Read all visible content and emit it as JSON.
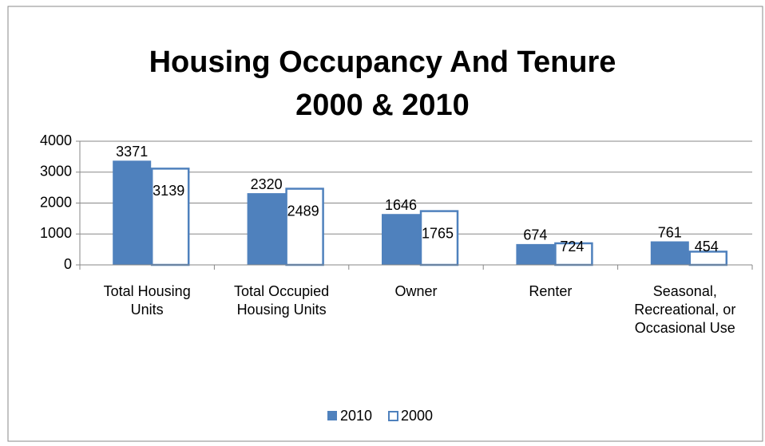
{
  "chart_data": {
    "type": "bar",
    "title": [
      "Housing Occupancy And Tenure",
      "2000 & 2010"
    ],
    "categories": [
      "Total Housing Units",
      "Total Occupied Housing Units",
      "Owner",
      "Renter",
      "Seasonal, Recreational, or Occasional Use"
    ],
    "series": [
      {
        "name": "2010",
        "color": "#4f81bd",
        "values": [
          3371,
          2320,
          1646,
          674,
          761
        ]
      },
      {
        "name": "2000",
        "color": "#4f81bd",
        "values": [
          3139,
          2489,
          1765,
          724,
          454
        ]
      }
    ],
    "ylim": [
      0,
      4000
    ],
    "yticks": [
      0,
      1000,
      2000,
      3000,
      4000
    ],
    "grid": true,
    "legend": "bottom"
  }
}
